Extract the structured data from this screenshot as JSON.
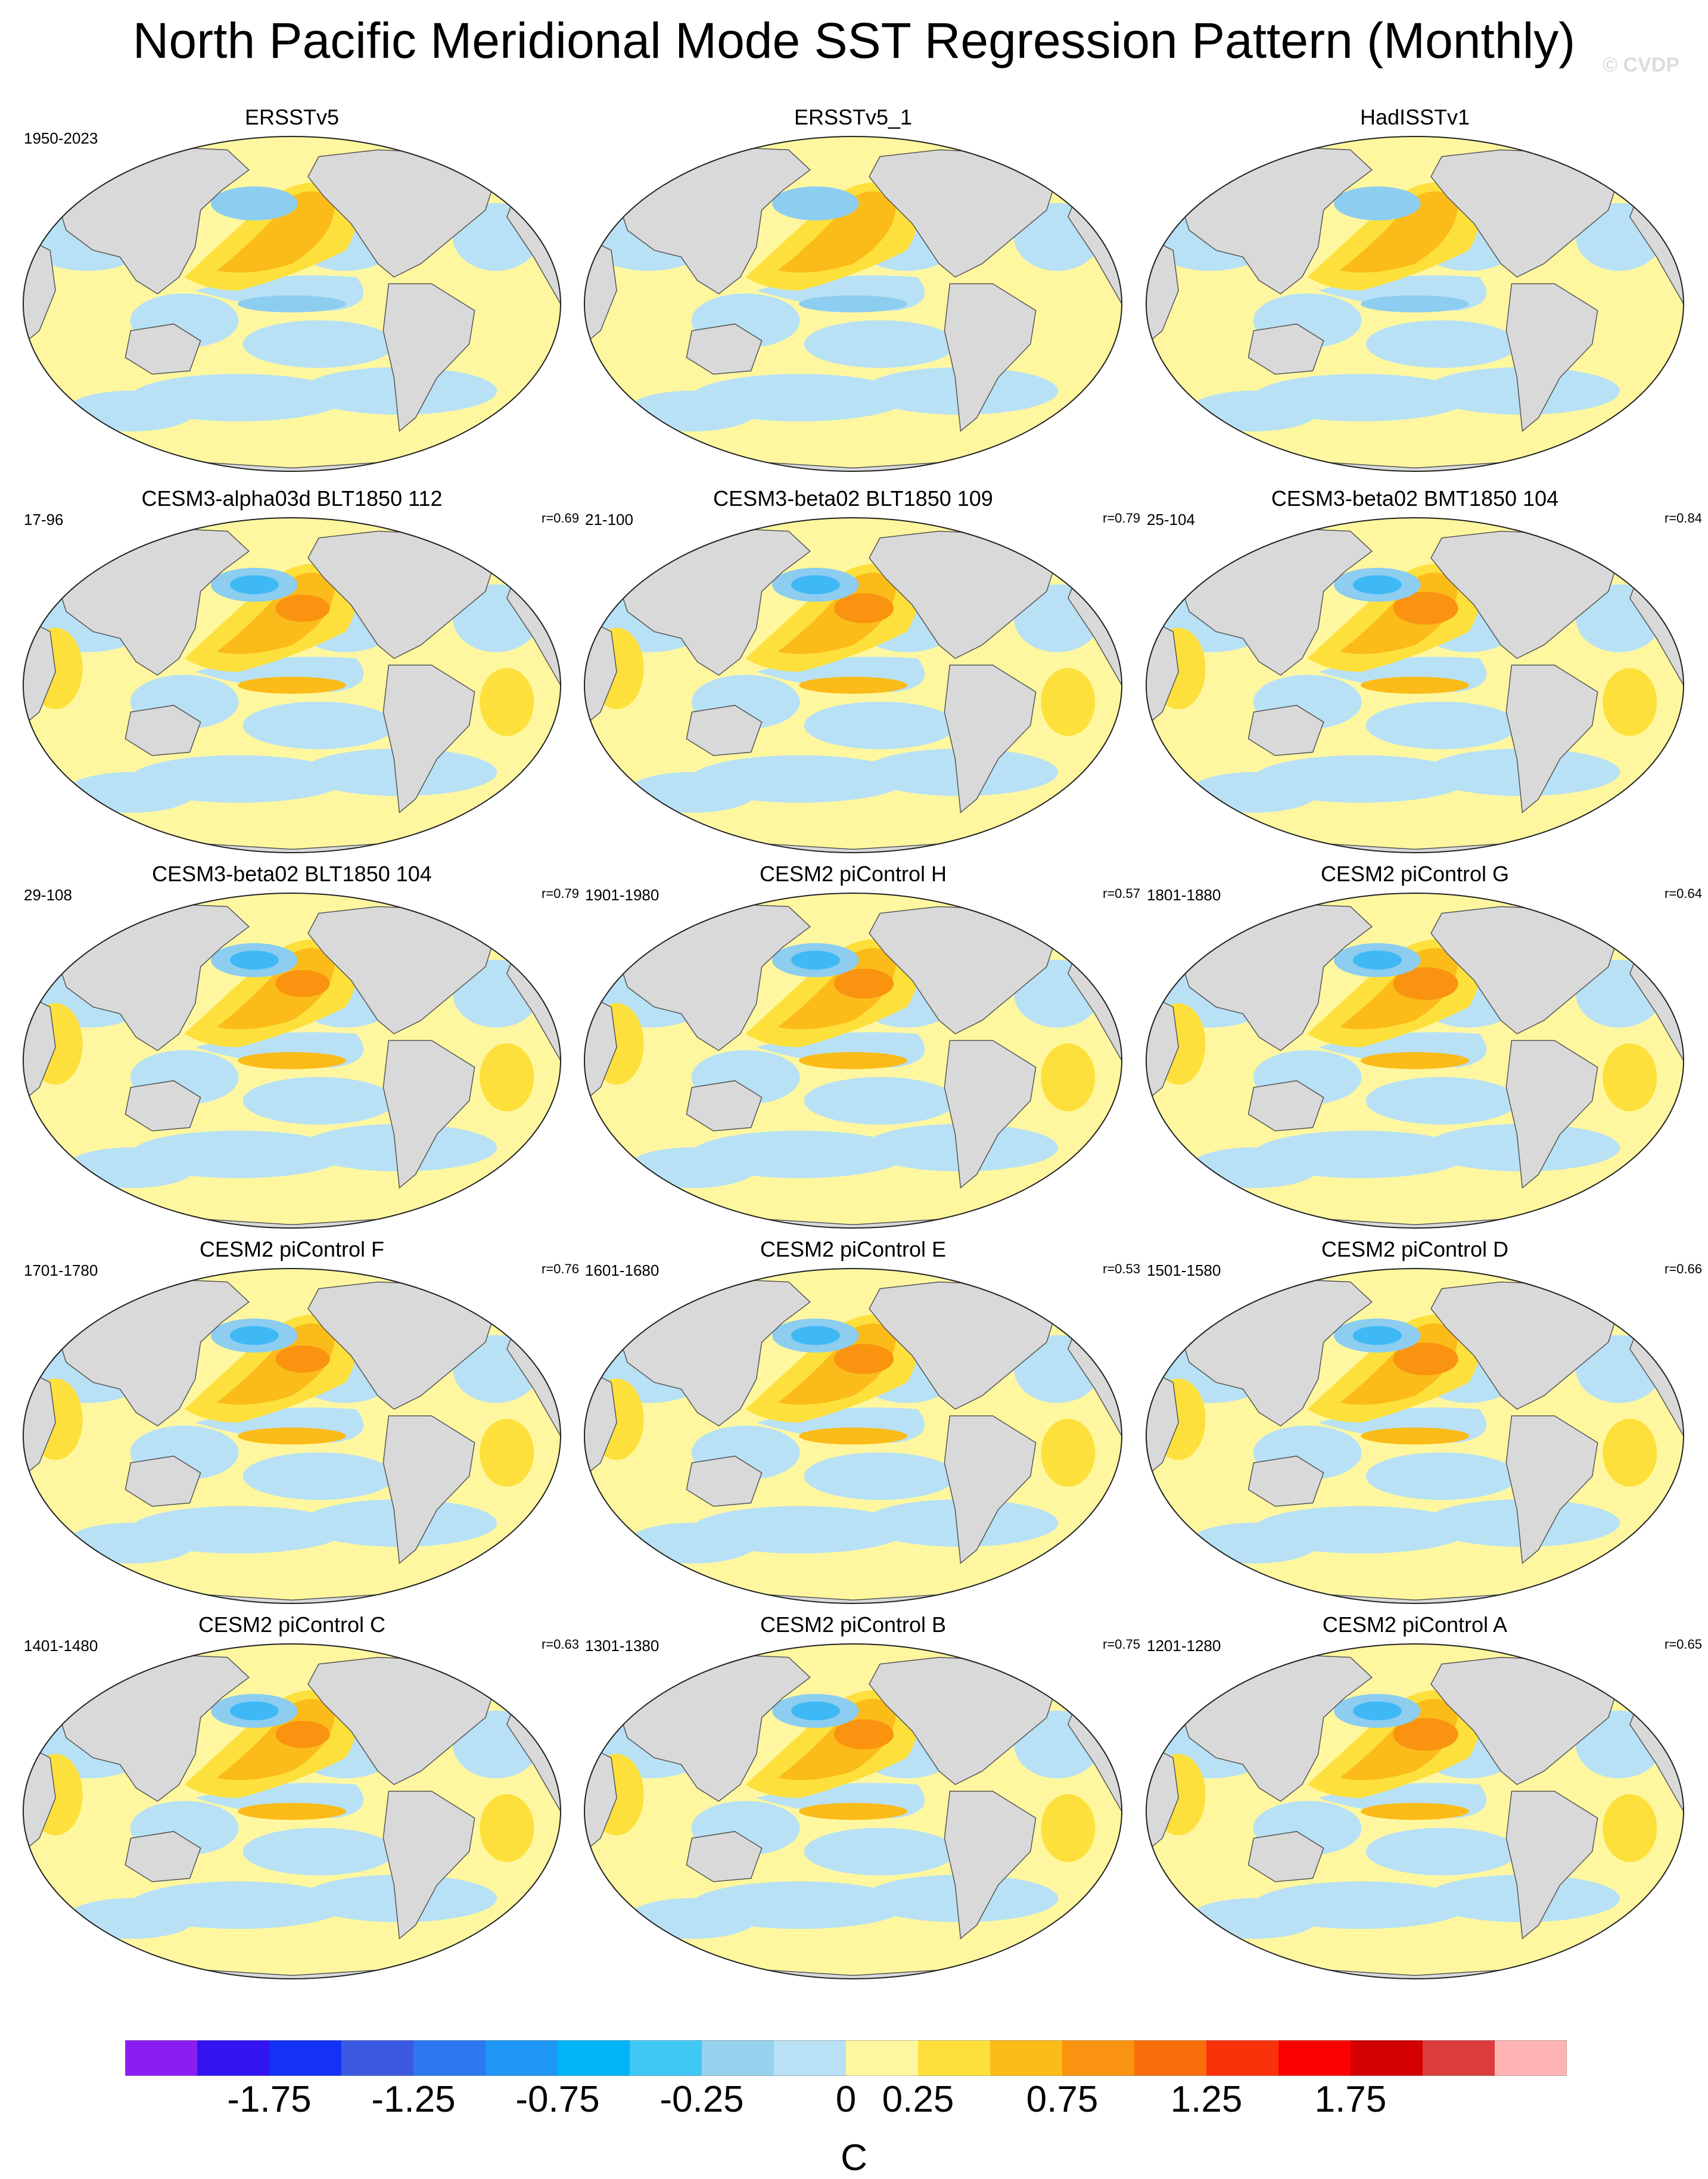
{
  "title": "North Pacific Meridional Mode SST Regression Pattern (Monthly)",
  "watermark": "© CVDP",
  "colors": {
    "land": "#d9d9d9",
    "coast": "#555555",
    "warm1": "#fff7a0",
    "warm2": "#fde03c",
    "warm3": "#fbbb19",
    "warm4": "#f99310",
    "cool1": "#b8e1f5",
    "cool2": "#8dcdf0",
    "cool3": "#3fb9f5"
  },
  "chart_data": {
    "type": "map-panels",
    "variable": "SST regression on North Pacific Meridional Mode",
    "unit": "C",
    "colorbar": {
      "levels": [
        -2.0,
        -1.75,
        -1.5,
        -1.25,
        -1.0,
        -0.75,
        -0.5,
        -0.25,
        0,
        0.25,
        0.5,
        0.75,
        1.0,
        1.25,
        1.5,
        1.75,
        2.0
      ],
      "labeled_ticks": [
        "-1.75",
        "-1.25",
        "-0.75",
        "-0.25",
        "0",
        "0.25",
        "0.75",
        "1.25",
        "1.75"
      ],
      "colors": [
        "#8a1ef0",
        "#3214f0",
        "#1432f5",
        "#3c5ae1",
        "#2d78f0",
        "#1e96f5",
        "#00b4f5",
        "#3fc8f5",
        "#96d2ee",
        "#b8e1f5",
        "#fff7a0",
        "#fde03c",
        "#fbbb19",
        "#f99310",
        "#f96e0a",
        "#fa320a",
        "#fa0000",
        "#d20000",
        "#dc3c3c",
        "#ffb4b4"
      ]
    },
    "panels": [
      {
        "title": "ERSSTv5",
        "period": "1950-2023",
        "r": ""
      },
      {
        "title": "ERSSTv5_1",
        "period": "",
        "r": ""
      },
      {
        "title": "HadISSTv1",
        "period": "",
        "r": ""
      },
      {
        "title": "CESM3-alpha03d BLT1850 112",
        "period": "17-96",
        "r": "r=0.69"
      },
      {
        "title": "CESM3-beta02 BLT1850 109",
        "period": "21-100",
        "r": "r=0.79"
      },
      {
        "title": "CESM3-beta02 BMT1850 104",
        "period": "25-104",
        "r": "r=0.84"
      },
      {
        "title": "CESM3-beta02 BLT1850 104",
        "period": "29-108",
        "r": "r=0.79"
      },
      {
        "title": "CESM2 piControl H",
        "period": "1901-1980",
        "r": "r=0.57"
      },
      {
        "title": "CESM2 piControl G",
        "period": "1801-1880",
        "r": "r=0.64"
      },
      {
        "title": "CESM2 piControl F",
        "period": "1701-1780",
        "r": "r=0.76"
      },
      {
        "title": "CESM2 piControl E",
        "period": "1601-1680",
        "r": "r=0.53"
      },
      {
        "title": "CESM2 piControl D",
        "period": "1501-1580",
        "r": "r=0.66"
      },
      {
        "title": "CESM2 piControl C",
        "period": "1401-1480",
        "r": "r=0.63"
      },
      {
        "title": "CESM2 piControl B",
        "period": "1301-1380",
        "r": "r=0.75"
      },
      {
        "title": "CESM2 piControl A",
        "period": "1201-1280",
        "r": "r=0.65"
      }
    ]
  }
}
